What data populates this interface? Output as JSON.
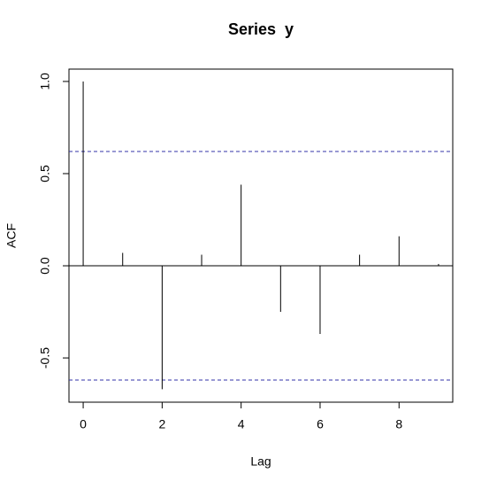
{
  "chart_data": {
    "type": "acf",
    "title": "Series  y",
    "x_label": "Lag",
    "y_label": "ACF",
    "x": [
      0,
      1,
      2,
      3,
      4,
      5,
      6,
      7,
      8,
      9
    ],
    "values": [
      1.0,
      0.07,
      -0.67,
      0.06,
      0.44,
      -0.25,
      -0.37,
      0.06,
      0.16,
      0.01
    ],
    "color": "#000000",
    "confidence_bounds": [
      -0.62,
      0.62
    ],
    "confidence_color": "#3333aa",
    "xlim": [
      -0.36,
      9.36
    ],
    "ylim": [
      -0.74,
      1.067
    ],
    "xticks": [
      0,
      2,
      4,
      6,
      8
    ],
    "yticks": [
      -0.5,
      {
        "value": 0,
        "label": "0.0"
      },
      0.5,
      {
        "value": 1,
        "label": "1.0"
      }
    ]
  }
}
